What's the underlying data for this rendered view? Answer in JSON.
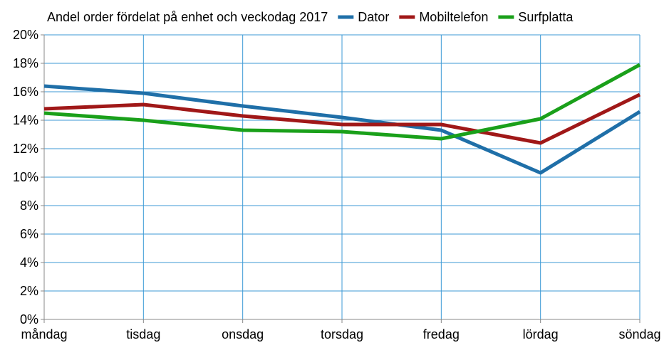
{
  "chart_data": {
    "type": "line",
    "title": "Andel order fördelat på enhet och veckodag 2017",
    "xlabel": "",
    "ylabel": "",
    "categories": [
      "måndag",
      "tisdag",
      "onsdag",
      "torsdag",
      "fredag",
      "lördag",
      "söndag"
    ],
    "ylim": [
      0,
      0.2
    ],
    "y_ticks": [
      0,
      0.02,
      0.04,
      0.06,
      0.08,
      0.1,
      0.12,
      0.14,
      0.16,
      0.18,
      0.2
    ],
    "y_tick_labels": [
      "0%",
      "2%",
      "4%",
      "6%",
      "8%",
      "10%",
      "12%",
      "14%",
      "16%",
      "18%",
      "20%"
    ],
    "grid": true,
    "legend_position": "top-right",
    "series": [
      {
        "name": "Dator",
        "color": "#1f6fa8",
        "values": [
          0.164,
          0.159,
          0.15,
          0.142,
          0.133,
          0.103,
          0.146
        ]
      },
      {
        "name": "Mobiltelefon",
        "color": "#a01818",
        "values": [
          0.148,
          0.151,
          0.143,
          0.137,
          0.137,
          0.124,
          0.158
        ]
      },
      {
        "name": "Surfplatta",
        "color": "#1aa01a",
        "values": [
          0.145,
          0.14,
          0.133,
          0.132,
          0.127,
          0.141,
          0.179
        ]
      }
    ]
  }
}
